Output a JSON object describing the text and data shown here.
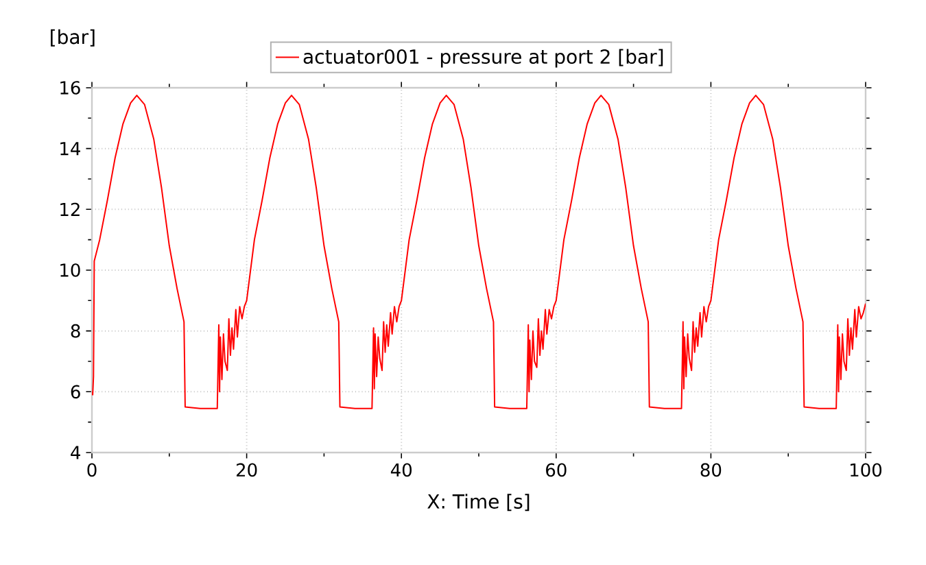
{
  "chart_data": {
    "type": "line",
    "xlabel": "X: Time [s]",
    "ylabel": "[bar]",
    "x": [
      0,
      0.1,
      0.2,
      0.3,
      1,
      2,
      3,
      4,
      5,
      5.8,
      6.8,
      8,
      9,
      10,
      11,
      11.9,
      12.05,
      14,
      16.2,
      16.4,
      16.5,
      16.6,
      16.8,
      17.0,
      17.2,
      17.5,
      17.7,
      17.9,
      18.1,
      18.3,
      18.6,
      18.8,
      19.1,
      19.4,
      19.7,
      20,
      21,
      22,
      23,
      24,
      25,
      25.8,
      26.8,
      28,
      29,
      30,
      31,
      31.9,
      32.05,
      34,
      36.2,
      36.4,
      36.5,
      36.6,
      36.8,
      37.0,
      37.2,
      37.5,
      37.7,
      37.9,
      38.1,
      38.3,
      38.6,
      38.8,
      39.1,
      39.4,
      39.7,
      40,
      41,
      42,
      43,
      44,
      45,
      45.8,
      46.8,
      48,
      49,
      50,
      51,
      51.9,
      52.05,
      54,
      56.2,
      56.4,
      56.5,
      56.6,
      56.8,
      57.0,
      57.2,
      57.5,
      57.7,
      57.9,
      58.1,
      58.3,
      58.6,
      58.8,
      59.1,
      59.4,
      59.7,
      60,
      61,
      62,
      63,
      64,
      65,
      65.8,
      66.8,
      68,
      69,
      70,
      71,
      71.9,
      72.05,
      74,
      76.2,
      76.4,
      76.5,
      76.6,
      76.8,
      77.0,
      77.2,
      77.5,
      77.7,
      77.9,
      78.1,
      78.3,
      78.6,
      78.8,
      79.1,
      79.4,
      79.7,
      80,
      81,
      82,
      83,
      84,
      85,
      85.8,
      86.8,
      88,
      89,
      90,
      91,
      91.9,
      92.05,
      94,
      96.2,
      96.4,
      96.5,
      96.6,
      96.8,
      97.0,
      97.2,
      97.5,
      97.7,
      97.9,
      98.1,
      98.3,
      98.6,
      98.8,
      99.1,
      99.4,
      99.7,
      100
    ],
    "series": [
      {
        "name": "actuator001 - pressure at port 2 [bar]",
        "color": "#ff0000",
        "values": [
          6.0,
          5.9,
          6.5,
          10.3,
          11.0,
          12.3,
          13.7,
          14.8,
          15.5,
          15.75,
          15.45,
          14.3,
          12.7,
          10.8,
          9.4,
          8.3,
          5.5,
          5.45,
          5.45,
          8.2,
          6.0,
          7.8,
          6.4,
          7.9,
          7.0,
          6.7,
          8.4,
          7.2,
          8.1,
          7.4,
          8.7,
          7.8,
          8.8,
          8.4,
          8.8,
          9.0,
          11.0,
          12.3,
          13.7,
          14.8,
          15.5,
          15.75,
          15.45,
          14.3,
          12.7,
          10.8,
          9.4,
          8.3,
          5.5,
          5.45,
          5.45,
          8.1,
          6.1,
          7.9,
          6.5,
          7.8,
          7.1,
          6.7,
          8.3,
          7.3,
          8.2,
          7.5,
          8.6,
          7.9,
          8.8,
          8.3,
          8.8,
          9.0,
          11.0,
          12.3,
          13.7,
          14.8,
          15.5,
          15.75,
          15.45,
          14.3,
          12.7,
          10.8,
          9.4,
          8.3,
          5.5,
          5.45,
          5.45,
          8.2,
          6.0,
          7.7,
          6.4,
          8.0,
          7.0,
          6.8,
          8.4,
          7.2,
          8.0,
          7.4,
          8.7,
          7.9,
          8.7,
          8.4,
          8.8,
          9.0,
          11.0,
          12.3,
          13.7,
          14.8,
          15.5,
          15.75,
          15.45,
          14.3,
          12.7,
          10.8,
          9.4,
          8.3,
          5.5,
          5.45,
          5.45,
          8.3,
          6.1,
          7.8,
          6.5,
          7.9,
          7.1,
          6.7,
          8.3,
          7.3,
          8.1,
          7.5,
          8.6,
          7.8,
          8.8,
          8.3,
          8.8,
          9.0,
          11.0,
          12.3,
          13.7,
          14.8,
          15.5,
          15.75,
          15.45,
          14.3,
          12.7,
          10.8,
          9.4,
          8.3,
          5.5,
          5.45,
          5.45,
          8.2,
          6.0,
          7.8,
          6.4,
          7.9,
          7.0,
          6.7,
          8.4,
          7.2,
          8.1,
          7.4,
          8.7,
          7.8,
          8.8,
          8.4,
          8.6,
          8.9
        ]
      }
    ],
    "xlim": [
      0,
      100
    ],
    "ylim": [
      4,
      16
    ],
    "xticks": [
      0,
      20,
      40,
      60,
      80,
      100
    ],
    "yticks": [
      4,
      6,
      8,
      10,
      12,
      14,
      16
    ],
    "grid": true,
    "legend": "top",
    "marker": "none",
    "line_style": "solid"
  }
}
